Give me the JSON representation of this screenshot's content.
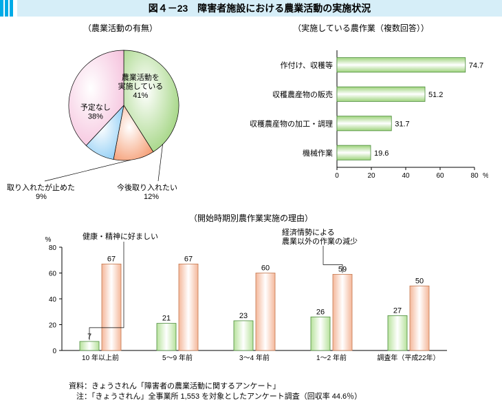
{
  "title": "図４－23　障害者施設における農業活動の実施状況",
  "pie": {
    "subtitle": "（農業活動の有無）",
    "slices": [
      {
        "label_line1": "農業活動を",
        "label_line2": "実施している",
        "pct": 41,
        "color": "#9ed37c",
        "mid_deg": 40
      },
      {
        "label_line1": "今後取り入れたい",
        "label_line2": "",
        "pct": 12,
        "color": "#f5a078",
        "mid_deg": 135
      },
      {
        "label_line1": "取り入れたが止めた",
        "label_line2": "",
        "pct": 9,
        "color": "#8ecdf5",
        "mid_deg": 173
      },
      {
        "label_line1": "予定なし",
        "label_line2": "",
        "pct": 38,
        "color": "#f5c2dd",
        "mid_deg": 258
      }
    ],
    "outline_color": "#000000",
    "font_size": 11,
    "callout_stopped": {
      "text1": "取り入れたが止めた",
      "text2": "9%"
    },
    "callout_future": {
      "text1": "今後取り入れたい",
      "text2": "12%"
    }
  },
  "hbar": {
    "subtitle": "（実施している農作業（複数回答））",
    "categories": [
      "作付け、収穫等",
      "収穫農産物の販売",
      "収穫農産物の加工・調理",
      "機械作業"
    ],
    "values": [
      74.7,
      51.2,
      31.7,
      19.6
    ],
    "bar_fill": "#9ed37c",
    "bar_stroke": "#4a8a3a",
    "axis_color": "#000000",
    "grid_color": "#000000",
    "xmax": 80,
    "xtick_step": 20,
    "unit": "%",
    "label_fontsize": 11,
    "value_fontsize": 11
  },
  "grouped": {
    "subtitle": "（開始時期別農作業実施の理由）",
    "categories": [
      "10 年以上前",
      "5～9 年前",
      "3～4 年前",
      "1～2 年前",
      "調査年（平成22年）"
    ],
    "series": [
      {
        "name": "健康・精神に好ましい",
        "values": [
          7,
          21,
          23,
          26,
          27
        ],
        "fill": "#b7e29c",
        "stroke": "#4a8a3a"
      },
      {
        "name": "経済情勢による農業以外の作業の減少",
        "values": [
          67,
          67,
          60,
          59,
          50
        ],
        "fill": "#f4b79a",
        "stroke": "#c4774e"
      }
    ],
    "ymax": 80,
    "ytick_step": 20,
    "unit": "%",
    "legend1": "健康・精神に好ましい",
    "legend2_line1": "経済情勢による",
    "legend2_line2": "農業以外の作業の減少",
    "axis_color": "#000000",
    "value_fontsize": 11,
    "label_fontsize": 10
  },
  "footnote": {
    "line1": "資料：きょうされん「障害者の農業活動に関するアンケート」",
    "line2": "　注：「きょうされん」全事業所 1,553 を対象としたアンケート調査（回収率 44.6％）"
  }
}
